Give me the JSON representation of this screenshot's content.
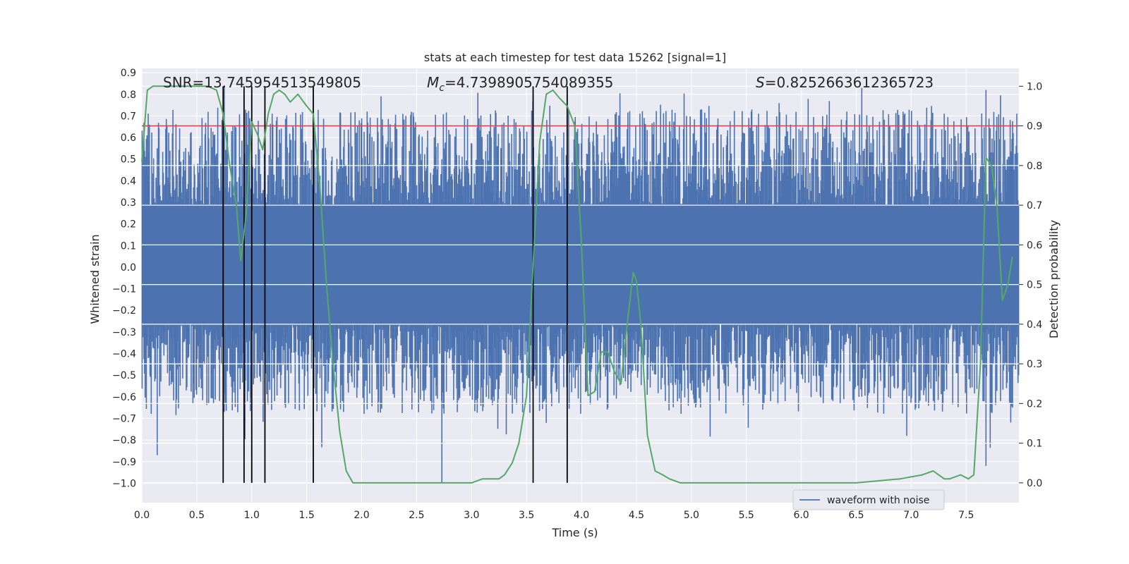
{
  "chart_data": {
    "type": "line",
    "title": "stats at each timestep for test data 15262 [signal=1]",
    "xlabel": "Time (s)",
    "ylabel": "Whitened strain",
    "ylabel_right": "Detection probability",
    "xlim": [
      0.0,
      7.98
    ],
    "ylim": [
      -1.09,
      0.92
    ],
    "ylim_right": [
      -0.05,
      1.045
    ],
    "x_ticks": [
      0.0,
      0.5,
      1.0,
      1.5,
      2.0,
      2.5,
      3.0,
      3.5,
      4.0,
      4.5,
      5.0,
      5.5,
      6.0,
      6.5,
      7.0,
      7.5
    ],
    "x_tick_labels": [
      "0.0",
      "0.5",
      "1.0",
      "1.5",
      "2.0",
      "2.5",
      "3.0",
      "3.5",
      "4.0",
      "4.5",
      "5.0",
      "5.5",
      "6.0",
      "6.5",
      "7.0",
      "7.5"
    ],
    "y_ticks": [
      0.9,
      0.8,
      0.7,
      0.6,
      0.5,
      0.4,
      0.3,
      0.2,
      0.1,
      0.0,
      -0.1,
      -0.2,
      -0.3,
      -0.4,
      -0.5,
      -0.6,
      -0.7,
      -0.8,
      -0.9,
      -1.0
    ],
    "y_tick_labels": [
      "0.9",
      "0.8",
      "0.7",
      "0.6",
      "0.5",
      "0.4",
      "0.3",
      "0.2",
      "0.1",
      "0.0",
      "−0.1",
      "−0.2",
      "−0.3",
      "−0.4",
      "−0.5",
      "−0.6",
      "−0.7",
      "−0.8",
      "−0.9",
      "−1.0"
    ],
    "y2_ticks": [
      1.0,
      0.9,
      0.8,
      0.7,
      0.6,
      0.5,
      0.4,
      0.3,
      0.2,
      0.1,
      0.0
    ],
    "y2_tick_labels": [
      "1.0",
      "0.9",
      "0.8",
      "0.7",
      "0.6",
      "0.5",
      "0.4",
      "0.3",
      "0.2",
      "0.1",
      "0.0"
    ],
    "annotations": {
      "snr": "SNR=13.745954513549805",
      "mc_symbol": "M",
      "mc_sub": "c",
      "mc_value": "=4.7398905754089355",
      "s_symbol": "S",
      "s_value": "=0.8252663612365723"
    },
    "legend": {
      "label": "waveform with noise",
      "location": "lower-right"
    },
    "threshold": {
      "value": 0.9,
      "axis": "right",
      "color": "#c44e52"
    },
    "vertical_lines": [
      0.74,
      0.93,
      1.0,
      1.12,
      1.56,
      3.56,
      3.87
    ],
    "waveform": {
      "color": "#4c72b0",
      "core_range": [
        -0.26,
        0.29
      ],
      "max_excursion": [
        -1.0,
        0.84
      ]
    },
    "detection_probability": {
      "color": "#55a868",
      "x": [
        0.0,
        0.05,
        0.1,
        0.2,
        0.3,
        0.4,
        0.5,
        0.6,
        0.68,
        0.74,
        0.8,
        0.86,
        0.9,
        0.95,
        1.0,
        1.05,
        1.1,
        1.15,
        1.2,
        1.25,
        1.3,
        1.35,
        1.42,
        1.5,
        1.56,
        1.62,
        1.68,
        1.74,
        1.8,
        1.86,
        1.92,
        2.0,
        2.2,
        2.5,
        2.8,
        3.0,
        3.1,
        3.15,
        3.2,
        3.25,
        3.3,
        3.37,
        3.43,
        3.5,
        3.56,
        3.62,
        3.68,
        3.74,
        3.8,
        3.87,
        3.94,
        4.0,
        4.06,
        4.12,
        4.18,
        4.24,
        4.3,
        4.36,
        4.42,
        4.47,
        4.5,
        4.54,
        4.6,
        4.67,
        4.74,
        4.8,
        4.9,
        5.0,
        5.2,
        5.5,
        5.8,
        6.0,
        6.5,
        6.9,
        7.1,
        7.2,
        7.25,
        7.3,
        7.35,
        7.45,
        7.52,
        7.57,
        7.63,
        7.68,
        7.73,
        7.78,
        7.83,
        7.88,
        7.92
      ],
      "y": [
        0.81,
        0.99,
        1.0,
        1.0,
        1.0,
        1.0,
        1.0,
        1.0,
        0.99,
        0.93,
        0.8,
        0.7,
        0.56,
        0.68,
        0.91,
        0.88,
        0.84,
        0.93,
        0.98,
        0.99,
        0.98,
        0.96,
        0.98,
        0.95,
        0.93,
        0.75,
        0.5,
        0.3,
        0.13,
        0.03,
        0.0,
        0.0,
        0.0,
        0.0,
        0.0,
        0.0,
        0.01,
        0.01,
        0.01,
        0.01,
        0.02,
        0.05,
        0.1,
        0.22,
        0.55,
        0.86,
        0.98,
        0.99,
        0.97,
        0.95,
        0.9,
        0.6,
        0.22,
        0.23,
        0.33,
        0.33,
        0.28,
        0.25,
        0.41,
        0.53,
        0.51,
        0.4,
        0.12,
        0.03,
        0.02,
        0.01,
        0.0,
        0.0,
        0.0,
        0.0,
        0.0,
        0.0,
        0.0,
        0.01,
        0.02,
        0.03,
        0.02,
        0.01,
        0.01,
        0.02,
        0.01,
        0.02,
        0.3,
        0.82,
        0.8,
        0.7,
        0.46,
        0.5,
        0.57
      ]
    }
  }
}
